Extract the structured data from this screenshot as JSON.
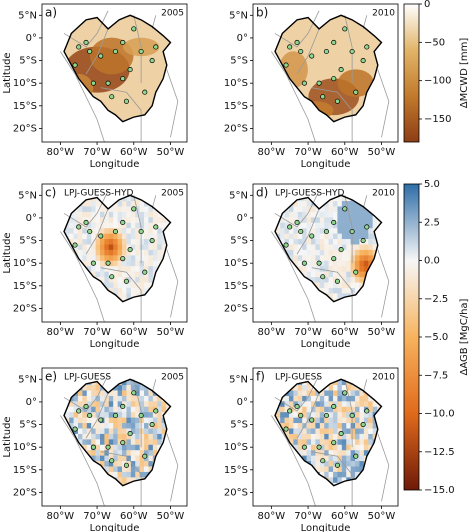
{
  "panels": [
    {
      "label": "a)",
      "year": "2005"
    },
    {
      "label": "b)",
      "year": "2010"
    },
    {
      "label": "c)",
      "model": "LPJ-GUESS-HYD",
      "year": "2005"
    },
    {
      "label": "d)",
      "model": "LPJ-GUESS-HYD",
      "year": "2010"
    },
    {
      "label": "e)",
      "model": "LPJ-GUESS",
      "year": "2005"
    },
    {
      "label": "f)",
      "model": "LPJ-GUESS",
      "year": "2010"
    }
  ],
  "map_axes": {
    "xlabel": "Longitude",
    "ylabel": "Latitude",
    "xlim": [
      -85,
      -45.5
    ],
    "ylim": [
      -23,
      7.5
    ],
    "xticks": [
      {
        "value": -80,
        "label": "80°W"
      },
      {
        "value": -70,
        "label": "70°W"
      },
      {
        "value": -60,
        "label": "60°W"
      },
      {
        "value": -50,
        "label": "50°W"
      }
    ],
    "yticks": [
      {
        "value": 5,
        "label": "5°N"
      },
      {
        "value": 0,
        "label": "0°"
      },
      {
        "value": -5,
        "label": "5°S"
      },
      {
        "value": -10,
        "label": "10°S"
      },
      {
        "value": -15,
        "label": "15°S"
      },
      {
        "value": -20,
        "label": "20°S"
      }
    ]
  },
  "colorbars": [
    {
      "label": "ΔMCWD [mm]",
      "lim": [
        -180,
        0
      ],
      "ticks": [
        0,
        {
          "value": -50,
          "label": "−50"
        },
        {
          "value": -100,
          "label": "−100"
        },
        {
          "value": -150,
          "label": "−150"
        }
      ],
      "colors": [
        "#ffffff",
        "#e2b469",
        "#c27a2c",
        "#8d3e16"
      ]
    },
    {
      "label": "ΔAGB [MgC/ha]",
      "lim": [
        -15,
        5
      ],
      "ticks": [
        {
          "value": 5,
          "label": "5.0"
        },
        {
          "value": 2.5,
          "label": "2.5"
        },
        {
          "value": 0,
          "label": "0.0"
        },
        {
          "value": -2.5,
          "label": "−2.5"
        },
        {
          "value": -5,
          "label": "−5.0"
        },
        {
          "value": -7.5,
          "label": "−7.5"
        },
        {
          "value": -10,
          "label": "−10.0"
        },
        {
          "value": -12.5,
          "label": "−12.5"
        },
        {
          "value": -15,
          "label": "−15.0"
        }
      ],
      "colors": [
        "#2e6da8",
        "#f7f7f7",
        "#f7b35e",
        "#e06a1c",
        "#6e1a08"
      ]
    }
  ]
}
